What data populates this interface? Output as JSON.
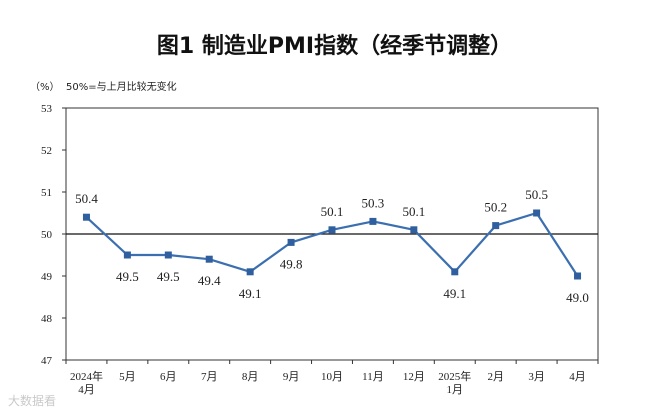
{
  "chart_data": {
    "type": "line",
    "title": "图1  制造业PMI指数（经季节调整）",
    "unit_label": "（%）",
    "note": "50%=与上月比较无变化",
    "categories": [
      [
        "2024年",
        "4月"
      ],
      [
        "5月"
      ],
      [
        "6月"
      ],
      [
        "7月"
      ],
      [
        "8月"
      ],
      [
        "9月"
      ],
      [
        "10月"
      ],
      [
        "11月"
      ],
      [
        "12月"
      ],
      [
        "2025年",
        "1月"
      ],
      [
        "2月"
      ],
      [
        "3月"
      ],
      [
        "4月"
      ]
    ],
    "values": [
      50.4,
      49.5,
      49.5,
      49.4,
      49.1,
      49.8,
      50.1,
      50.3,
      50.1,
      49.1,
      50.2,
      50.5,
      49.0
    ],
    "value_labels": [
      "50.4",
      "49.5",
      "49.5",
      "49.4",
      "49.1",
      "49.8",
      "50.1",
      "50.3",
      "50.1",
      "49.1",
      "50.2",
      "50.5",
      "49.0"
    ],
    "label_position": [
      "above",
      "below",
      "below",
      "below",
      "below",
      "below",
      "above",
      "above",
      "above",
      "below",
      "above",
      "above",
      "below"
    ],
    "ylim": [
      47,
      53
    ],
    "yticks": [
      "47",
      "48",
      "49",
      "50",
      "51",
      "52",
      "53"
    ],
    "reference_line": 50,
    "line_color": "#3b6fb0",
    "marker_color": "#2f5f9e",
    "xlabel": "",
    "ylabel": ""
  },
  "watermark": "大数据看"
}
